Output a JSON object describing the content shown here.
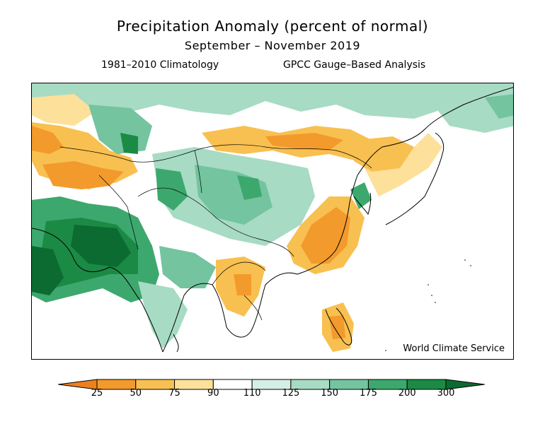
{
  "header": {
    "title": "Precipitation Anomaly (percent of normal)",
    "subtitle": "September – November 2019",
    "climatology": "1981–2010 Climatology",
    "analysis": "GPCC Gauge–Based Analysis"
  },
  "map": {
    "credit": "World Climate Service"
  },
  "legend": {
    "labels": [
      "25",
      "50",
      "75",
      "90",
      "110",
      "125",
      "150",
      "175",
      "200",
      "300"
    ],
    "colors": {
      "below_25": "#ee7f1d",
      "25_50": "#f39a2c",
      "50_75": "#f8c050",
      "75_90": "#fde09a",
      "90_110": "#ffffff",
      "110_125": "#d6efe6",
      "125_150": "#a7dbc4",
      "150_175": "#73c49f",
      "175_200": "#3da86d",
      "200_300": "#1b8a45",
      "above_300": "#0c6b30"
    }
  }
}
